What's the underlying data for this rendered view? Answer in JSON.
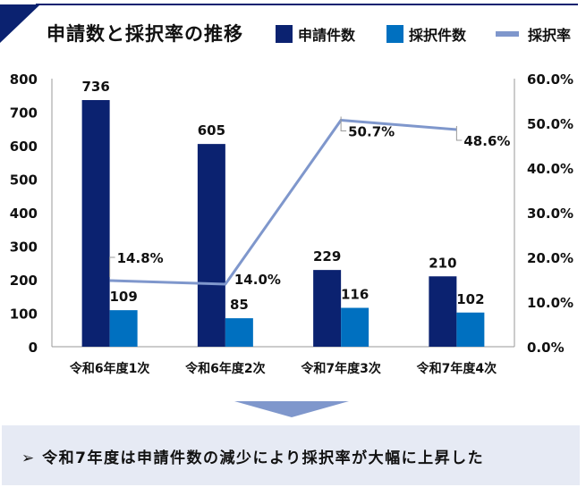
{
  "title": "申請数と採択率の推移",
  "legend": [
    {
      "label": "申請件数",
      "color": "#0b2270"
    },
    {
      "label": "採択件数",
      "color": "#0070c0"
    },
    {
      "label": "採択率",
      "color": "#7f97cc"
    }
  ],
  "chart_data": {
    "type": "bar",
    "categories": [
      "令和6年度1次",
      "令和6年度2次",
      "令和7年度3次",
      "令和7年度4次"
    ],
    "series": [
      {
        "name": "申請件数",
        "type": "bar",
        "axis": "left",
        "color": "#0b2270",
        "values": [
          736,
          605,
          229,
          210
        ]
      },
      {
        "name": "採択件数",
        "type": "bar",
        "axis": "left",
        "color": "#0070c0",
        "values": [
          109,
          85,
          116,
          102
        ]
      },
      {
        "name": "採択率",
        "type": "line",
        "axis": "right",
        "color": "#7f97cc",
        "values": [
          14.8,
          14.0,
          50.7,
          48.6
        ],
        "labels": [
          "14.8%",
          "14.0%",
          "50.7%",
          "48.6%"
        ]
      }
    ],
    "ylim": [
      0,
      800
    ],
    "yticks": [
      "0",
      "100",
      "200",
      "300",
      "400",
      "500",
      "600",
      "700",
      "800"
    ],
    "y2lim": [
      0,
      60
    ],
    "y2ticks": [
      "0.0%",
      "10.0%",
      "20.0%",
      "30.0%",
      "40.0%",
      "50.0%",
      "60.0%"
    ],
    "grid": false,
    "legend_position": "top-right"
  },
  "conclusion": "令和7年度は申請件数の減少により採択率が大幅に上昇した",
  "bullet_icon": "arrowhead-right"
}
